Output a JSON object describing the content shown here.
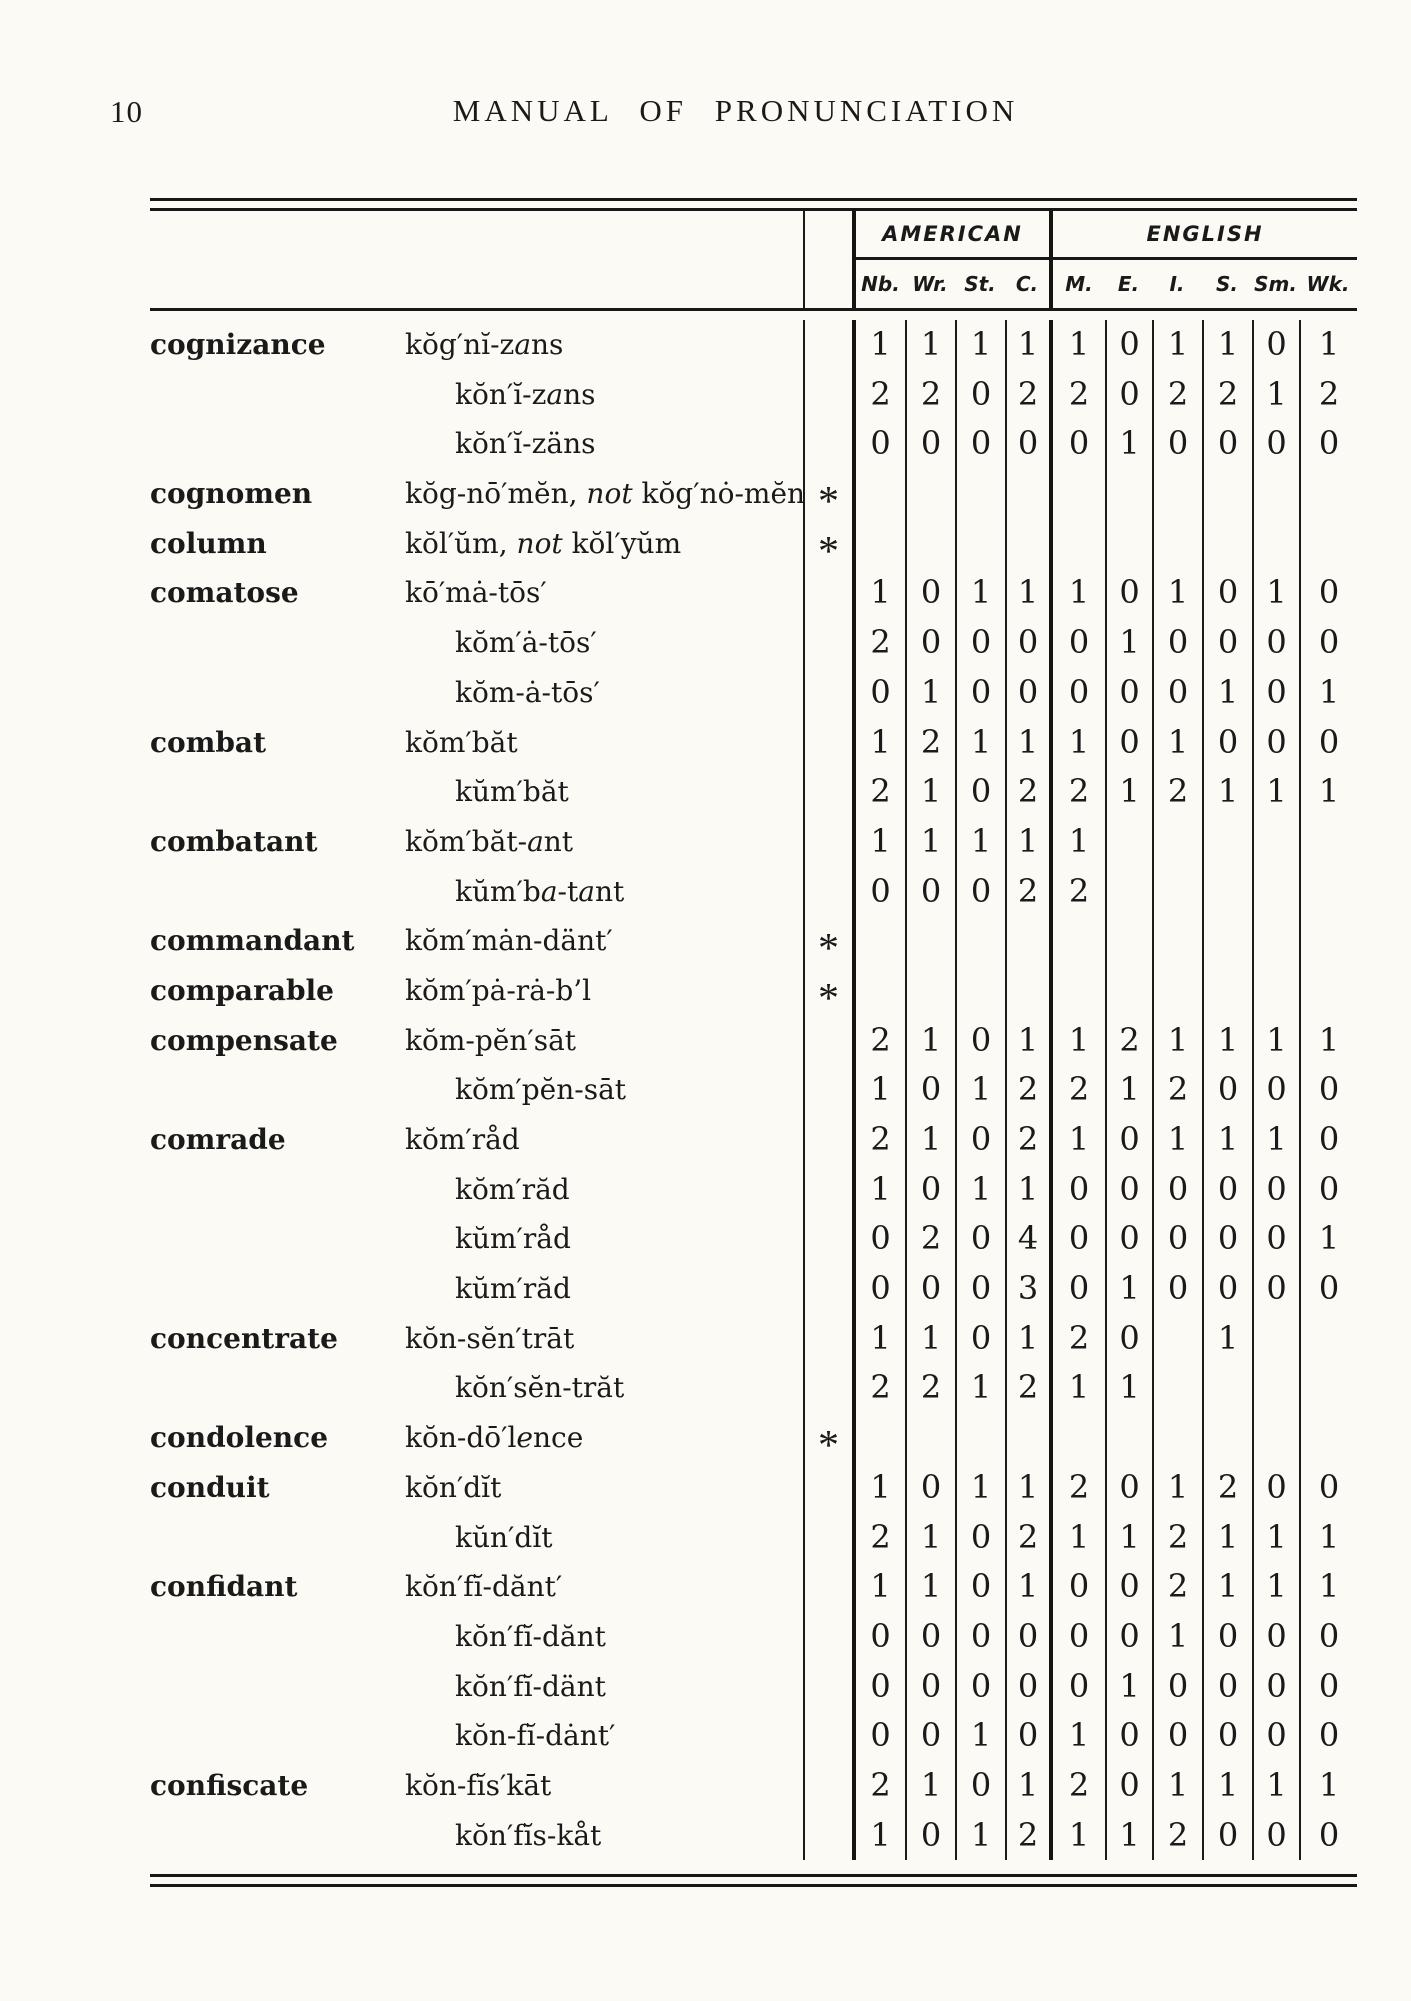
{
  "page": {
    "number": "10",
    "title": "MANUAL OF PRONUNCIATION"
  },
  "table": {
    "asterisk_glyph": "*",
    "groups": [
      {
        "label": "AMERICAN"
      },
      {
        "label": "ENGLISH"
      }
    ],
    "columns": [
      "Nb.",
      "Wr.",
      "St.",
      "C.",
      "M.",
      "E.",
      "I.",
      "S.",
      "Sm.",
      "Wk."
    ],
    "rows": [
      {
        "word": "cognizance",
        "pron": "kŏg′nĭ-z<i>a</i>ns",
        "star": false,
        "values": [
          "1",
          "1",
          "1",
          "1",
          "1",
          "0",
          "1",
          "1",
          "0",
          "1"
        ]
      },
      {
        "word": "",
        "pron": "kŏn′ĭ-z<i>a</i>ns",
        "star": false,
        "values": [
          "2",
          "2",
          "0",
          "2",
          "2",
          "0",
          "2",
          "2",
          "1",
          "2"
        ]
      },
      {
        "word": "",
        "pron": "kŏn′ĭ-zäns",
        "star": false,
        "values": [
          "0",
          "0",
          "0",
          "0",
          "0",
          "1",
          "0",
          "0",
          "0",
          "0"
        ]
      },
      {
        "word": "cognomen",
        "pron": "kŏg-nō′mĕn, <i>not</i> kŏg′nȯ-mĕn",
        "star": true,
        "values": [
          "",
          "",
          "",
          "",
          "",
          "",
          "",
          "",
          "",
          ""
        ]
      },
      {
        "word": "column",
        "pron": "kŏl′ŭm, <i>not</i> kŏl′yŭm",
        "star": true,
        "values": [
          "",
          "",
          "",
          "",
          "",
          "",
          "",
          "",
          "",
          ""
        ]
      },
      {
        "word": "comatose",
        "pron": "kō′mȧ-tōs′",
        "star": false,
        "values": [
          "1",
          "0",
          "1",
          "1",
          "1",
          "0",
          "1",
          "0",
          "1",
          "0"
        ]
      },
      {
        "word": "",
        "pron": "kŏm′ȧ-tōs′",
        "star": false,
        "values": [
          "2",
          "0",
          "0",
          "0",
          "0",
          "1",
          "0",
          "0",
          "0",
          "0"
        ]
      },
      {
        "word": "",
        "pron": "kŏm-ȧ-tōs′",
        "star": false,
        "values": [
          "0",
          "1",
          "0",
          "0",
          "0",
          "0",
          "0",
          "1",
          "0",
          "1"
        ]
      },
      {
        "word": "combat",
        "pron": "kŏm′băt",
        "star": false,
        "values": [
          "1",
          "2",
          "1",
          "1",
          "1",
          "0",
          "1",
          "0",
          "0",
          "0"
        ]
      },
      {
        "word": "",
        "pron": "kŭm′băt",
        "star": false,
        "values": [
          "2",
          "1",
          "0",
          "2",
          "2",
          "1",
          "2",
          "1",
          "1",
          "1"
        ]
      },
      {
        "word": "combatant",
        "pron": "kŏm′băt-<i>a</i>nt",
        "star": false,
        "values": [
          "1",
          "1",
          "1",
          "1",
          "1",
          "",
          "",
          "",
          "",
          ""
        ]
      },
      {
        "word": "",
        "pron": "kŭm′b<i>a</i>-t<i>a</i>nt",
        "star": false,
        "values": [
          "0",
          "0",
          "0",
          "2",
          "2",
          "",
          "",
          "",
          "",
          ""
        ]
      },
      {
        "word": "commandant",
        "pron": "kŏm′mȧn-dänt′",
        "star": true,
        "values": [
          "",
          "",
          "",
          "",
          "",
          "",
          "",
          "",
          "",
          ""
        ]
      },
      {
        "word": "comparable",
        "pron": "kŏm′pȧ-rȧ-b’l",
        "star": true,
        "values": [
          "",
          "",
          "",
          "",
          "",
          "",
          "",
          "",
          "",
          ""
        ]
      },
      {
        "word": "compensate",
        "pron": "kŏm-pĕn′sāt",
        "star": false,
        "values": [
          "2",
          "1",
          "0",
          "1",
          "1",
          "2",
          "1",
          "1",
          "1",
          "1"
        ]
      },
      {
        "word": "",
        "pron": "kŏm′pĕn-sāt",
        "star": false,
        "values": [
          "1",
          "0",
          "1",
          "2",
          "2",
          "1",
          "2",
          "0",
          "0",
          "0"
        ]
      },
      {
        "word": "comrade",
        "pron": "kŏm′råd",
        "star": false,
        "values": [
          "2",
          "1",
          "0",
          "2",
          "1",
          "0",
          "1",
          "1",
          "1",
          "0"
        ]
      },
      {
        "word": "",
        "pron": "kŏm′răd",
        "star": false,
        "values": [
          "1",
          "0",
          "1",
          "1",
          "0",
          "0",
          "0",
          "0",
          "0",
          "0"
        ]
      },
      {
        "word": "",
        "pron": "kŭm′råd",
        "star": false,
        "values": [
          "0",
          "2",
          "0",
          "4",
          "0",
          "0",
          "0",
          "0",
          "0",
          "1"
        ]
      },
      {
        "word": "",
        "pron": "kŭm′răd",
        "star": false,
        "values": [
          "0",
          "0",
          "0",
          "3",
          "0",
          "1",
          "0",
          "0",
          "0",
          "0"
        ]
      },
      {
        "word": "concentrate",
        "pron": "kŏn-sĕn′trāt",
        "star": false,
        "values": [
          "1",
          "1",
          "0",
          "1",
          "2",
          "0",
          "",
          "1",
          "",
          ""
        ]
      },
      {
        "word": "",
        "pron": "kŏn′sĕn-trăt",
        "star": false,
        "values": [
          "2",
          "2",
          "1",
          "2",
          "1",
          "1",
          "",
          "",
          "",
          ""
        ]
      },
      {
        "word": "condolence",
        "pron": "kŏn-dō′l<i>e</i>nce",
        "star": true,
        "values": [
          "",
          "",
          "",
          "",
          "",
          "",
          "",
          "",
          "",
          ""
        ]
      },
      {
        "word": "conduit",
        "pron": "kŏn′dĭt",
        "star": false,
        "values": [
          "1",
          "0",
          "1",
          "1",
          "2",
          "0",
          "1",
          "2",
          "0",
          "0"
        ]
      },
      {
        "word": "",
        "pron": "kŭn′dĭt",
        "star": false,
        "values": [
          "2",
          "1",
          "0",
          "2",
          "1",
          "1",
          "2",
          "1",
          "1",
          "1"
        ]
      },
      {
        "word": "confidant",
        "pron": "kŏn′fĭ-dănt′",
        "star": false,
        "values": [
          "1",
          "1",
          "0",
          "1",
          "0",
          "0",
          "2",
          "1",
          "1",
          "1"
        ]
      },
      {
        "word": "",
        "pron": "kŏn′fĭ-dănt",
        "star": false,
        "values": [
          "0",
          "0",
          "0",
          "0",
          "0",
          "0",
          "1",
          "0",
          "0",
          "0"
        ]
      },
      {
        "word": "",
        "pron": "kŏn′fĭ-dänt",
        "star": false,
        "values": [
          "0",
          "0",
          "0",
          "0",
          "0",
          "1",
          "0",
          "0",
          "0",
          "0"
        ]
      },
      {
        "word": "",
        "pron": "kŏn-fĭ-dȧnt′",
        "star": false,
        "values": [
          "0",
          "0",
          "1",
          "0",
          "1",
          "0",
          "0",
          "0",
          "0",
          "0"
        ]
      },
      {
        "word": "confiscate",
        "pron": "kŏn-fĭs′kāt",
        "star": false,
        "values": [
          "2",
          "1",
          "0",
          "1",
          "2",
          "0",
          "1",
          "1",
          "1",
          "1"
        ]
      },
      {
        "word": "",
        "pron": "kŏn′fĭs-kåt",
        "star": false,
        "values": [
          "1",
          "0",
          "1",
          "2",
          "1",
          "1",
          "2",
          "0",
          "0",
          "0"
        ]
      }
    ]
  }
}
